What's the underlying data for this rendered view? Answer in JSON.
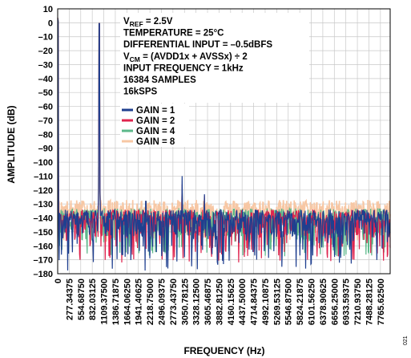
{
  "chart_data": {
    "type": "line",
    "title": "",
    "xlabel": "FREQUENCY (Hz)",
    "ylabel": "AMPLITUDE (dB)",
    "xlim": [
      0,
      8000
    ],
    "ylim": [
      -180,
      10
    ],
    "grid": true,
    "legend_position": "middle",
    "x_tick_labels": [
      "0",
      "277.34375",
      "554.68750",
      "832.03125",
      "1109.37500",
      "1386.71875",
      "1664.06250",
      "1941.40625",
      "2218.75000",
      "2496.09375",
      "2773.43750",
      "3050.78125",
      "3328.12500",
      "3605.46875",
      "3882.81250",
      "4160.15625",
      "4437.50000",
      "4714.84375",
      "4992.10875",
      "5269.53125",
      "5546.87500",
      "5824.21875",
      "6101.56250",
      "6378.90625",
      "6656.25000",
      "6933.59375",
      "7210.93750",
      "7488.28125",
      "7765.62500"
    ],
    "y_tick_labels": [
      "10",
      "0",
      "–10",
      "–20",
      "–30",
      "–40",
      "–50",
      "–60",
      "–70",
      "–80",
      "–90",
      "–100",
      "–110",
      "–120",
      "–130",
      "–140",
      "–150",
      "–160",
      "–170",
      "–180"
    ],
    "annotations": [
      {
        "main": "V",
        "sub": "REF",
        "rest": " = 2.5V"
      },
      {
        "main": "TEMPERATURE = 25°C"
      },
      {
        "main": "DIFFERENTIAL INPUT = –0.5dBFS"
      },
      {
        "main": "V",
        "sub": "CM",
        "rest": " = (AVDD1x + AVSSx) ÷ 2"
      },
      {
        "main": "INPUT FREQUENCY = 1kHz"
      },
      {
        "main": "16384 SAMPLES"
      },
      {
        "main": "16kSPS"
      }
    ],
    "series": [
      {
        "name": "GAIN = 1",
        "color": "#1f3f8f",
        "tone_db": -0.5,
        "noise_floor_db": -140,
        "min_db": -178,
        "spurs": [
          {
            "x": 2990,
            "y": -110
          },
          {
            "x": 3530,
            "y": -123
          },
          {
            "x": 2120,
            "y": -128
          }
        ]
      },
      {
        "name": "GAIN = 2",
        "color": "#e0244e",
        "tone_db": -0.5,
        "noise_floor_db": -140,
        "min_db": -172,
        "spurs": [
          {
            "x": 2990,
            "y": -116
          },
          {
            "x": 3530,
            "y": -124
          }
        ]
      },
      {
        "name": "GAIN = 4",
        "color": "#5cb88a",
        "tone_db": -0.5,
        "noise_floor_db": -139,
        "min_db": -168,
        "spurs": [
          {
            "x": 2990,
            "y": -118
          }
        ]
      },
      {
        "name": "GAIN = 8",
        "color": "#f7c7a4",
        "tone_db": -0.5,
        "noise_floor_db": -133,
        "min_db": -158,
        "spurs": [
          {
            "x": 2990,
            "y": -122
          },
          {
            "x": 3530,
            "y": -125
          }
        ]
      }
    ]
  },
  "figure_number": "021"
}
